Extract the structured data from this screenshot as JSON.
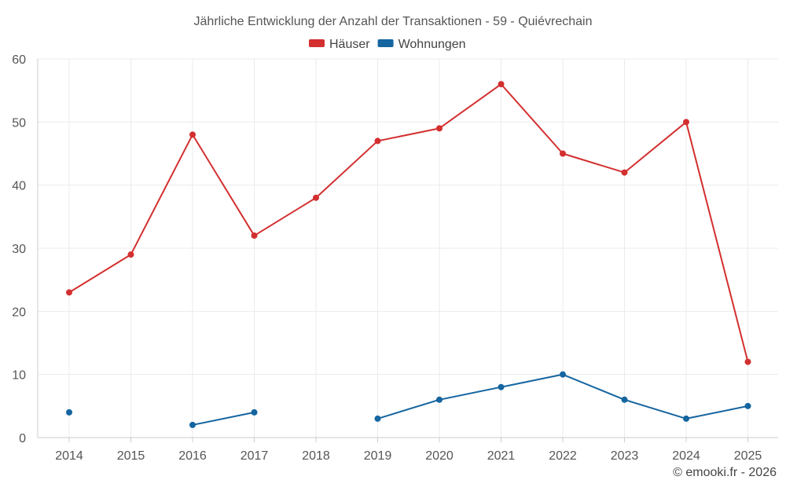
{
  "chart_data": {
    "type": "line",
    "title": "Jährliche Entwicklung der Anzahl der Transaktionen - 59 - Quiévrechain",
    "categories": [
      "2014",
      "2015",
      "2016",
      "2017",
      "2018",
      "2019",
      "2020",
      "2021",
      "2022",
      "2023",
      "2024",
      "2025"
    ],
    "series": [
      {
        "name": "Häuser",
        "color": "#d32f2f",
        "values": [
          23,
          29,
          48,
          32,
          38,
          47,
          49,
          56,
          45,
          42,
          50,
          12
        ]
      },
      {
        "name": "Wohnungen",
        "color": "#1565a0",
        "values": [
          4,
          null,
          2,
          4,
          null,
          3,
          6,
          8,
          10,
          6,
          3,
          5
        ]
      }
    ],
    "ylim": [
      0,
      60
    ],
    "yticks": [
      0,
      10,
      20,
      30,
      40,
      50,
      60
    ],
    "xlabel": "",
    "ylabel": "",
    "grid": true,
    "legend_position": "top-center"
  },
  "credit": "© emooki.fr - 2026"
}
